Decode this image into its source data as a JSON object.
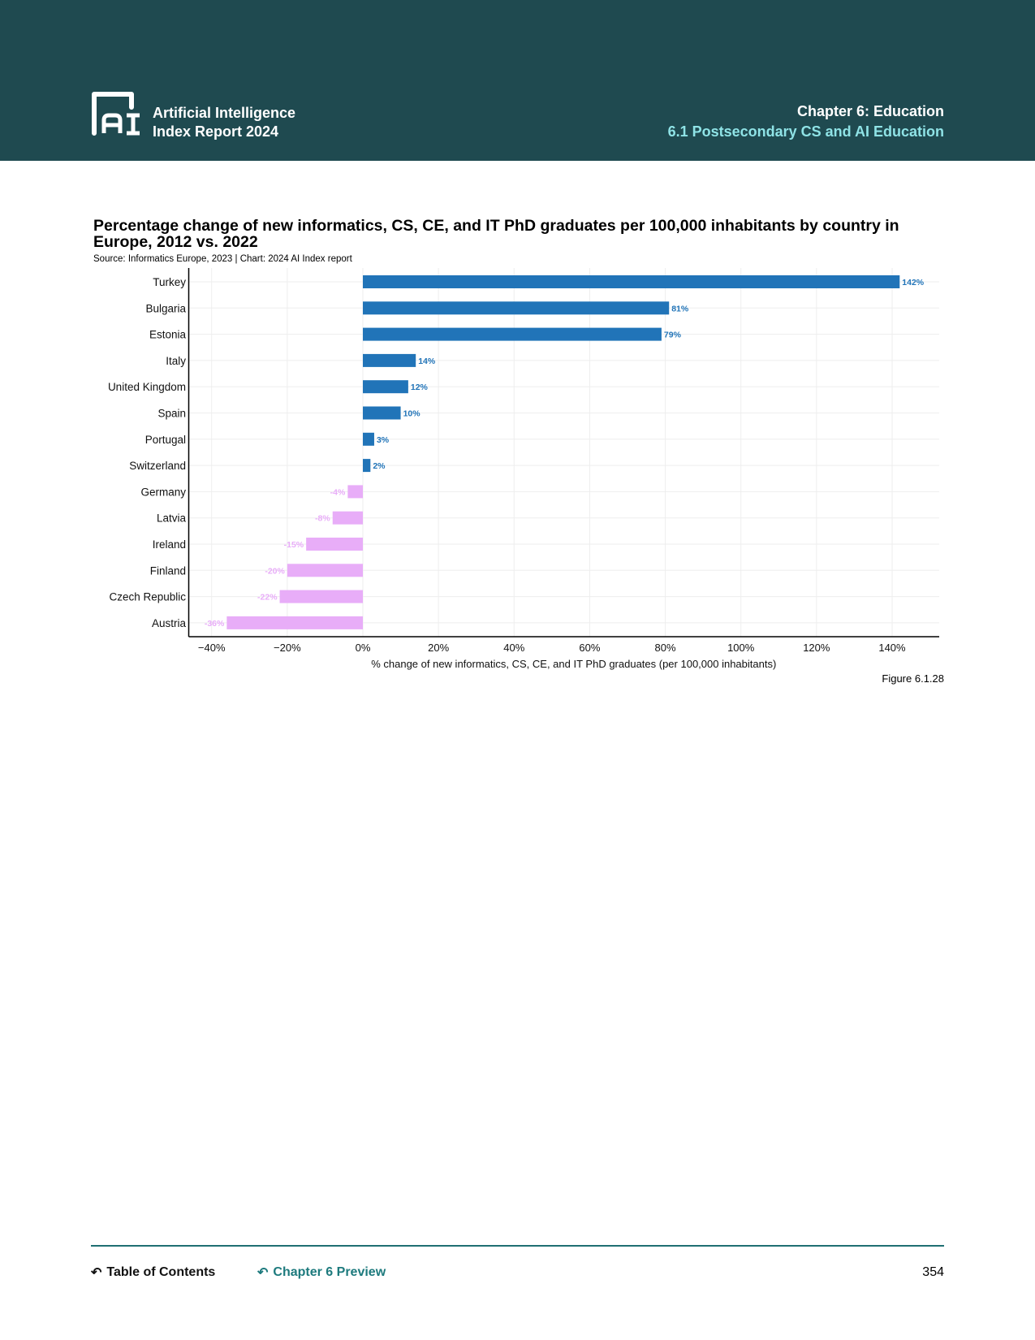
{
  "header": {
    "brand_line1": "Artificial Intelligence",
    "brand_line2": "Index Report 2024",
    "logo_text": "AI",
    "chapter": "Chapter 6: Education",
    "section": "6.1 Postsecondary CS and AI Education"
  },
  "chart_data": {
    "type": "bar",
    "orientation": "horizontal",
    "title": "Percentage change of new informatics, CS, CE, and IT PhD graduates per 100,000 inhabitants by country in Europe, 2012 vs. 2022",
    "source": "Source: Informatics Europe, 2023 | Chart: 2024 AI Index report",
    "categories": [
      "Turkey",
      "Bulgaria",
      "Estonia",
      "Italy",
      "United Kingdom",
      "Spain",
      "Portugal",
      "Switzerland",
      "Germany",
      "Latvia",
      "Ireland",
      "Finland",
      "Czech Republic",
      "Austria"
    ],
    "values": [
      142,
      81,
      79,
      14,
      12,
      10,
      3,
      2,
      -4,
      -8,
      -15,
      -20,
      -22,
      -36
    ],
    "value_labels": [
      "142%",
      "81%",
      "79%",
      "14%",
      "12%",
      "10%",
      "3%",
      "2%",
      "-4%",
      "-8%",
      "-15%",
      "-20%",
      "-22%",
      "-36%"
    ],
    "xlabel": "% change of new informatics, CS, CE, and IT PhD graduates (per 100,000 inhabitants)",
    "xlim": [
      -44,
      152
    ],
    "xticks": [
      -40,
      -20,
      0,
      20,
      40,
      60,
      80,
      100,
      120,
      140
    ],
    "xtick_labels": [
      "−40%",
      "−20%",
      "0%",
      "20%",
      "40%",
      "60%",
      "80%",
      "100%",
      "120%",
      "140%"
    ],
    "grid": true,
    "colors": {
      "positive": "#2174b8",
      "negative": "#e8adf8"
    }
  },
  "figure_label": "Figure 6.1.28",
  "footer": {
    "toc": "Table of Contents",
    "preview": "Chapter 6 Preview",
    "page": "354"
  }
}
